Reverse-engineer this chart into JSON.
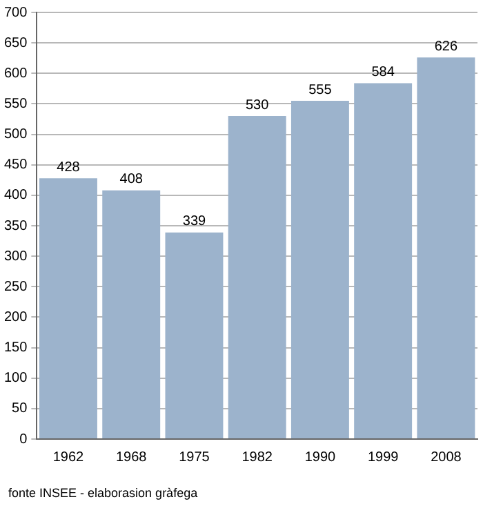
{
  "chart_data": {
    "type": "bar",
    "categories": [
      "1962",
      "1968",
      "1975",
      "1982",
      "1990",
      "1999",
      "2008"
    ],
    "values": [
      428,
      408,
      339,
      530,
      555,
      584,
      626
    ],
    "color": "#9cb3cc",
    "ylim": [
      0,
      700
    ],
    "yticks": [
      0,
      50,
      100,
      150,
      200,
      250,
      300,
      350,
      400,
      450,
      500,
      550,
      600,
      650,
      700
    ],
    "grid": "y",
    "data_labels": true,
    "annotations": [
      "fonte INSEE - elaborasion gràfega"
    ]
  }
}
